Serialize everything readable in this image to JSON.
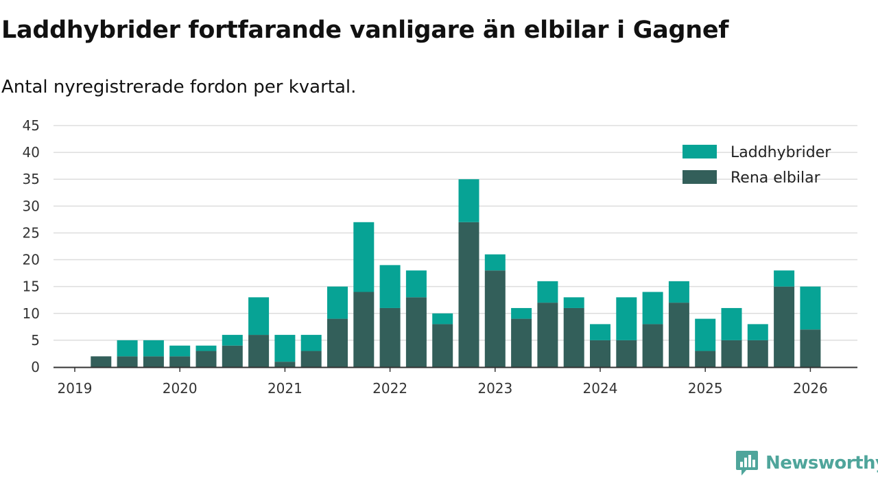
{
  "chart_data": {
    "type": "bar",
    "stacked": true,
    "title": "Laddhybrider fortfarande vanligare än elbilar i Gagnef",
    "subtitle": "Antal nyregistrerade fordon per kvartal.",
    "xlabel": "",
    "ylabel": "",
    "ylim": [
      0,
      45
    ],
    "yticks": [
      0,
      5,
      10,
      15,
      20,
      25,
      30,
      35,
      40,
      45
    ],
    "year_ticks": [
      "2019",
      "2020",
      "2021",
      "2022",
      "2023",
      "2024",
      "2025",
      "2026"
    ],
    "grid": true,
    "legend_position": "top-right",
    "categories": [
      "2019Q1",
      "2019Q2",
      "2019Q3",
      "2019Q4",
      "2020Q1",
      "2020Q2",
      "2020Q3",
      "2020Q4",
      "2021Q1",
      "2021Q2",
      "2021Q3",
      "2021Q4",
      "2022Q1",
      "2022Q2",
      "2022Q3",
      "2022Q4",
      "2023Q1",
      "2023Q2",
      "2023Q3",
      "2023Q4",
      "2024Q1",
      "2024Q2",
      "2024Q3",
      "2024Q4",
      "2025Q1",
      "2025Q2",
      "2025Q3",
      "2025Q4",
      "2026Q1"
    ],
    "series": [
      {
        "name": "Rena elbilar",
        "color": "#335f5a",
        "values": [
          0,
          2,
          2,
          2,
          2,
          3,
          4,
          6,
          1,
          3,
          9,
          14,
          11,
          13,
          8,
          27,
          18,
          9,
          12,
          11,
          5,
          5,
          8,
          12,
          3,
          5,
          5,
          15,
          7
        ]
      },
      {
        "name": "Laddhybrider",
        "color": "#07a395",
        "values": [
          0,
          0,
          3,
          3,
          2,
          1,
          2,
          7,
          5,
          3,
          6,
          13,
          8,
          5,
          2,
          8,
          3,
          2,
          4,
          2,
          3,
          8,
          6,
          4,
          6,
          6,
          3,
          3,
          8
        ]
      }
    ]
  },
  "brand": {
    "name": "Newsworthy",
    "logo_icon": "newsworthy-logo-icon",
    "color": "#4fa59b"
  }
}
